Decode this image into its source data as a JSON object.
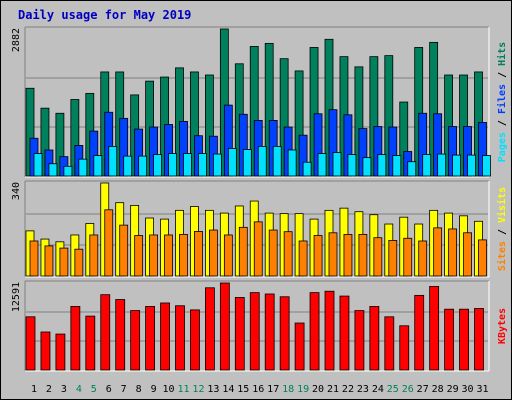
{
  "title": "Daily usage for May 2019",
  "colors": {
    "hits": "#00805C",
    "files": "#0040FF",
    "pages": "#00E0FF",
    "visits": "#FFFF00",
    "sites": "#FF8000",
    "kbytes": "#FF0000",
    "title": "#0000C0",
    "weekend_day": "#00805C",
    "weekday": "#000000"
  },
  "chart_data": [
    {
      "type": "bar",
      "name": "hits-files-pages",
      "y_max_label": "2882",
      "side_label_parts": [
        "Pages",
        " / ",
        "Files",
        " / ",
        "Hits"
      ],
      "categories": [
        "1",
        "2",
        "3",
        "4",
        "5",
        "6",
        "7",
        "8",
        "9",
        "10",
        "11",
        "12",
        "13",
        "14",
        "15",
        "16",
        "17",
        "18",
        "19",
        "20",
        "21",
        "22",
        "23",
        "24",
        "25",
        "26",
        "27",
        "28",
        "29",
        "30",
        "31"
      ],
      "series": [
        {
          "name": "Hits",
          "values": [
            1720,
            1330,
            1230,
            1500,
            1620,
            2040,
            2040,
            1590,
            1860,
            1940,
            2120,
            2040,
            1980,
            2882,
            2200,
            2540,
            2600,
            2300,
            2060,
            2520,
            2680,
            2340,
            2140,
            2340,
            2360,
            1450,
            2520,
            2620,
            1980,
            1980,
            2040
          ]
        },
        {
          "name": "Files",
          "values": [
            740,
            510,
            380,
            600,
            880,
            1250,
            1130,
            920,
            960,
            1010,
            1070,
            790,
            780,
            1390,
            1210,
            1090,
            1090,
            960,
            800,
            1220,
            1300,
            1200,
            930,
            970,
            960,
            480,
            1230,
            1220,
            970,
            970,
            1050
          ]
        },
        {
          "name": "Pages",
          "values": [
            440,
            240,
            190,
            330,
            400,
            580,
            390,
            390,
            420,
            440,
            440,
            440,
            430,
            540,
            520,
            580,
            580,
            510,
            270,
            440,
            460,
            420,
            360,
            420,
            400,
            280,
            420,
            430,
            410,
            410,
            400
          ]
        }
      ],
      "ylim": [
        0,
        2882
      ]
    },
    {
      "type": "bar",
      "name": "visits-sites",
      "y_max_label": "340",
      "side_label_parts": [
        "Sites",
        " / ",
        "Visits"
      ],
      "categories": [
        "1",
        "2",
        "3",
        "4",
        "5",
        "6",
        "7",
        "8",
        "9",
        "10",
        "11",
        "12",
        "13",
        "14",
        "15",
        "16",
        "17",
        "18",
        "19",
        "20",
        "21",
        "22",
        "23",
        "24",
        "25",
        "26",
        "27",
        "28",
        "29",
        "30",
        "31"
      ],
      "series": [
        {
          "name": "Visits",
          "values": [
            165,
            135,
            125,
            150,
            192,
            340,
            268,
            258,
            212,
            208,
            240,
            254,
            240,
            230,
            256,
            274,
            230,
            228,
            228,
            208,
            240,
            248,
            235,
            224,
            190,
            215,
            190,
            240,
            230,
            220,
            200
          ]
        },
        {
          "name": "Sites",
          "values": [
            128,
            110,
            102,
            98,
            150,
            242,
            186,
            148,
            150,
            150,
            152,
            163,
            168,
            150,
            178,
            198,
            168,
            162,
            128,
            148,
            158,
            152,
            152,
            140,
            130,
            138,
            128,
            176,
            172,
            158,
            132
          ]
        }
      ],
      "ylim": [
        0,
        340
      ]
    },
    {
      "type": "bar",
      "name": "kbytes",
      "y_max_label": "12591",
      "side_label_parts": [
        "KBytes"
      ],
      "categories": [
        "1",
        "2",
        "3",
        "4",
        "5",
        "6",
        "7",
        "8",
        "9",
        "10",
        "11",
        "12",
        "13",
        "14",
        "15",
        "16",
        "17",
        "18",
        "19",
        "20",
        "21",
        "22",
        "23",
        "24",
        "25",
        "26",
        "27",
        "28",
        "29",
        "30",
        "31"
      ],
      "series": [
        {
          "name": "KBytes",
          "values": [
            7700,
            5500,
            5200,
            9200,
            7800,
            10900,
            10200,
            8600,
            9200,
            9700,
            9300,
            8700,
            11900,
            12591,
            10500,
            11200,
            11000,
            10600,
            6800,
            11200,
            11400,
            10700,
            8600,
            9200,
            7700,
            6400,
            10800,
            12100,
            8800,
            8800,
            8900
          ]
        }
      ],
      "ylim": [
        0,
        12591
      ]
    }
  ],
  "weekend_days": [
    "4",
    "5",
    "11",
    "12",
    "18",
    "19",
    "25",
    "26"
  ]
}
